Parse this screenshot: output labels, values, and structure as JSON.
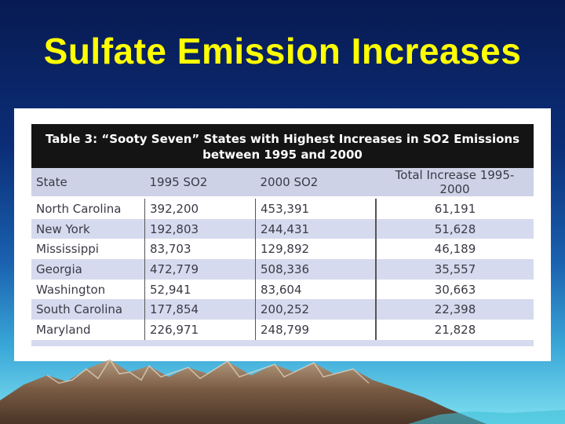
{
  "slide": {
    "title": "Sulfate Emission Increases"
  },
  "table": {
    "caption_line1": "Table 3: “Sooty Seven” States with Highest Increases in SO2 Emissions",
    "caption_line2": "between 1995 and 2000",
    "columns": [
      "State",
      "1995 SO2",
      "2000 SO2",
      "Total Increase 1995-2000"
    ],
    "rows": [
      [
        "North Carolina",
        "392,200",
        "453,391",
        "61,191"
      ],
      [
        "New York",
        "192,803",
        "244,431",
        "51,628"
      ],
      [
        "Mississippi",
        "83,703",
        "129,892",
        "46,189"
      ],
      [
        "Georgia",
        "472,779",
        "508,336",
        "35,557"
      ],
      [
        "Washington",
        "52,941",
        "83,604",
        "30,663"
      ],
      [
        "South Carolina",
        "177,854",
        "200,252",
        "22,398"
      ],
      [
        "Maryland",
        "226,971",
        "248,799",
        "21,828"
      ]
    ]
  },
  "colors": {
    "title": "#ffff00",
    "header_band": "#141414",
    "row_stripe": "#d6daee"
  }
}
